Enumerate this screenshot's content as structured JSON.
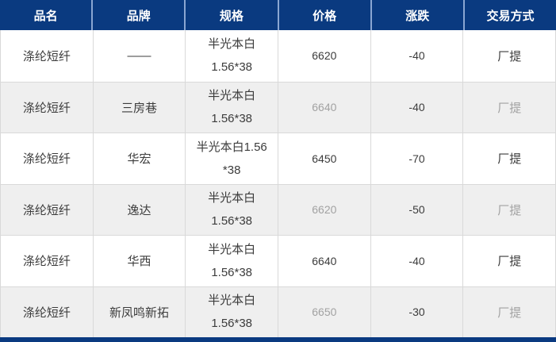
{
  "colors": {
    "header_bg": "#0a3a80",
    "header_text": "#ffffff",
    "header_divider": "#8aa6d2",
    "row_shaded_bg": "#efefef",
    "row_border": "#d9d9d9",
    "text": "#3c3c3c",
    "muted_text": "#a2a2a2",
    "bottom_bar": "#0a3a80"
  },
  "table": {
    "headers": [
      "品名",
      "品牌",
      "规格",
      "价格",
      "涨跌",
      "交易方式"
    ],
    "rows": [
      {
        "name": "涤纶短纤",
        "brand": "——",
        "spec1": "半光本白",
        "spec2": "1.56*38",
        "price": "6620",
        "change": "-40",
        "trade": "厂提"
      },
      {
        "name": "涤纶短纤",
        "brand": "三房巷",
        "spec1": "半光本白",
        "spec2": "1.56*38",
        "price": "6640",
        "change": "-40",
        "trade": "厂提"
      },
      {
        "name": "涤纶短纤",
        "brand": "华宏",
        "spec1": "半光本白1.56",
        "spec2": "*38",
        "price": "6450",
        "change": "-70",
        "trade": "厂提"
      },
      {
        "name": "涤纶短纤",
        "brand": "逸达",
        "spec1": "半光本白",
        "spec2": "1.56*38",
        "price": "6620",
        "change": "-50",
        "trade": "厂提"
      },
      {
        "name": "涤纶短纤",
        "brand": "华西",
        "spec1": "半光本白",
        "spec2": "1.56*38",
        "price": "6640",
        "change": "-40",
        "trade": "厂提"
      },
      {
        "name": "涤纶短纤",
        "brand": "新凤鸣新拓",
        "spec1": "半光本白",
        "spec2": "1.56*38",
        "price": "6650",
        "change": "-30",
        "trade": "厂提"
      }
    ]
  }
}
